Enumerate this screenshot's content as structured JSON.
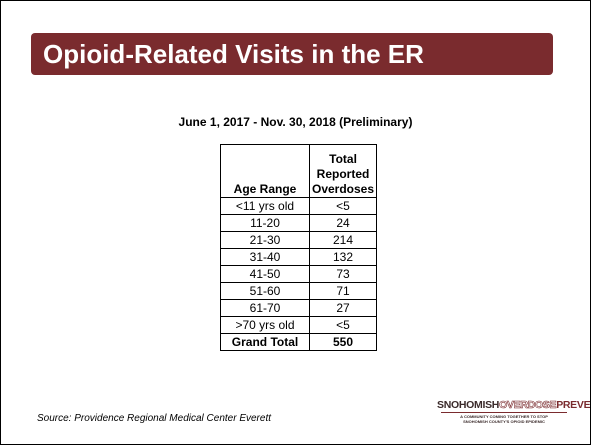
{
  "header": {
    "title": "Opioid-Related Visits in the ER"
  },
  "subtitle": "June 1, 2017 - Nov. 30, 2018 (Preliminary)",
  "table": {
    "columns": [
      "Age Range",
      "Total Reported Overdoses"
    ],
    "rows": [
      [
        "<11 yrs old",
        "<5"
      ],
      [
        "11-20",
        "24"
      ],
      [
        "21-30",
        "214"
      ],
      [
        "31-40",
        "132"
      ],
      [
        "41-50",
        "73"
      ],
      [
        "51-60",
        "71"
      ],
      [
        "61-70",
        "27"
      ],
      [
        ">70 yrs old",
        "<5"
      ]
    ],
    "total": [
      "Grand Total",
      "550"
    ]
  },
  "source": "Source: Providence Regional Medical Center Everett",
  "logo": {
    "name": [
      "SNOHOMISH",
      "OVERDOSE",
      "PREVENTION"
    ],
    "tagline": [
      "A COMMUNITY COMING TOGETHER TO STOP",
      "SNOHOMISH COUNTY'S OPIOID EPIDEMIC"
    ]
  }
}
